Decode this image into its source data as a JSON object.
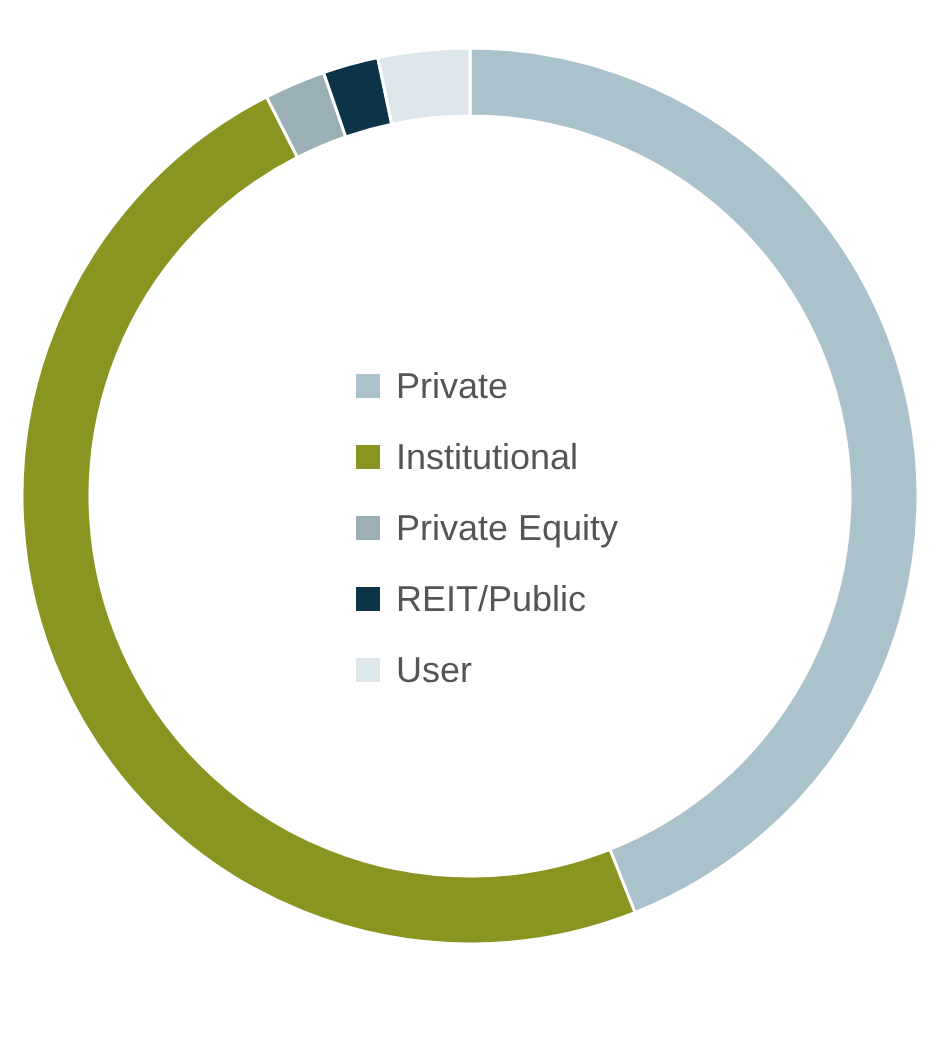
{
  "chart_data": {
    "type": "donut",
    "categories": [
      "Private",
      "Institutional",
      "Private Equity",
      "REIT/Public",
      "User"
    ],
    "values": [
      44,
      48.5,
      2.2,
      2,
      3.3
    ],
    "colors": [
      "#a9c2cb",
      "#8a9420",
      "#9aafb6",
      "#0d3349",
      "#dde6ea"
    ],
    "legend": "center"
  }
}
